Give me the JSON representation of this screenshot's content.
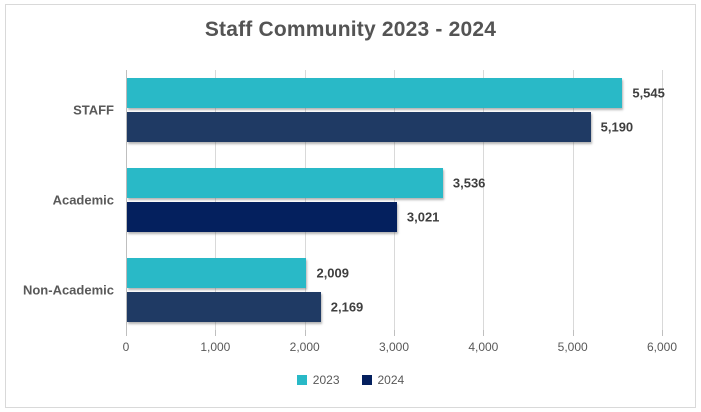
{
  "chart_data": {
    "type": "bar",
    "orientation": "horizontal",
    "title": "Staff Community 2023 - 2024",
    "categories": [
      "STAFF",
      "Academic",
      "Non-Academic"
    ],
    "series": [
      {
        "name": "2023",
        "color": "#29b9c7",
        "values": [
          5545,
          3536,
          2009
        ],
        "value_labels": [
          "5,545",
          "3,536",
          "2,009"
        ]
      },
      {
        "name": "2024",
        "color": "#04205e",
        "point_colors": [
          "#1f3a64",
          "#04205e",
          "#1f3a64"
        ],
        "values": [
          5190,
          3021,
          2169
        ],
        "value_labels": [
          "5,190",
          "3,021",
          "2,169"
        ]
      }
    ],
    "xlabel": "",
    "ylabel": "",
    "xlim": [
      0,
      6000
    ],
    "tick_values": [
      0,
      1000,
      2000,
      3000,
      4000,
      5000,
      6000
    ],
    "tick_labels": [
      "0",
      "1,000",
      "2,000",
      "3,000",
      "4,000",
      "5,000",
      "6,000"
    ],
    "grid": "vertical",
    "legend_position": "bottom",
    "colors": {
      "gridline": "#d9d9d9",
      "axis_text": "#595959",
      "title_text": "#545454",
      "value_text": "#3f3f3f",
      "frame_border": "#d9d9d9"
    }
  }
}
